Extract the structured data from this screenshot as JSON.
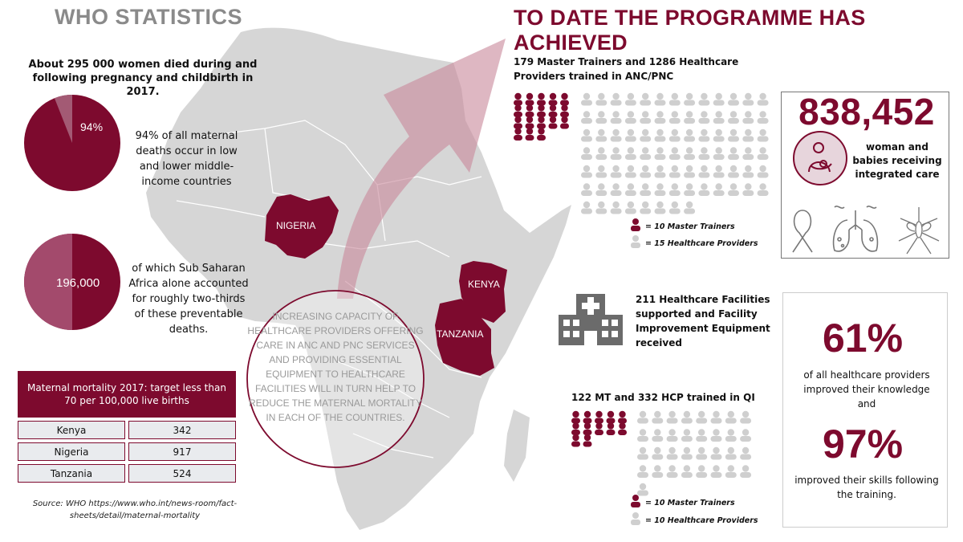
{
  "who": {
    "title": "WHO STATISTICS",
    "intro": "About 295 000 women died during and following pregnancy and childbirth in 2017.",
    "pie1": {
      "label": "94%",
      "value": 94,
      "text": "94% of all maternal deaths occur in low and lower middle-income countries"
    },
    "pie2": {
      "label": "196,000",
      "fraction": 0.66,
      "text": "of which Sub Saharan Africa alone accounted for roughly two-thirds of these preventable deaths."
    },
    "table": {
      "header": "Maternal mortality 2017: target less than 70 per 100,000 live births",
      "rows": [
        {
          "country": "Kenya",
          "value": "342"
        },
        {
          "country": "Nigeria",
          "value": "917"
        },
        {
          "country": "Tanzania",
          "value": "524"
        }
      ]
    },
    "source": "Source: WHO https://www.who.int/news-room/fact-sheets/detail/maternal-mortality"
  },
  "map": {
    "countries": {
      "nigeria": "NIGERIA",
      "kenya": "KENYA",
      "tanzania": "TANZANIA"
    },
    "circle_text": "INCREASING CAPACITY OF HEALTHCARE PROVIDERS OFFERING CARE IN ANC AND PNC SERVICES AND PROVIDING ESSENTIAL EQUIPMENT TO HEALTHCARE FACILITIES WILL IN TURN HELP TO REDUCE THE MATERNAL MORTALITY IN EACH OF THE COUNTRIES."
  },
  "programme": {
    "title": "TO DATE THE PROGRAMME HAS ACHIEVED",
    "trained": {
      "heading": "179 Master Trainers and 1286 Healthcare Providers trained in ANC/PNC",
      "master_icons": 18,
      "provider_icons": 86,
      "legend_master": "= 10 Master Trainers",
      "legend_provider": "= 15 Healthcare Providers"
    },
    "facilities": {
      "heading": "211 Healthcare Facilities supported and Facility Improvement Equipment received",
      "icon": "hospital-icon"
    },
    "qi": {
      "heading": "122 MT and 332 HCP trained in QI",
      "master_icons": 12,
      "provider_icons": 33,
      "legend_master": "= 10 Master Trainers",
      "legend_provider": "= 10 Healthcare Providers"
    },
    "care": {
      "number": "838,452",
      "text": "woman and babies receiving integrated care",
      "icons": [
        "mother-baby-icon",
        "ribbon-icon",
        "lungs-icon",
        "mosquito-icon"
      ]
    },
    "knowledge": {
      "number": "61%",
      "text": "of all healthcare providers improved their knowledge and"
    },
    "skills": {
      "number": "97%",
      "text": "improved their skills following the training."
    }
  },
  "colors": {
    "maroon": "#7d0a2e",
    "map_grey": "#d6d6d6",
    "icon_grey": "#cfcfcf",
    "arrow_pink": "#c98a9c"
  }
}
